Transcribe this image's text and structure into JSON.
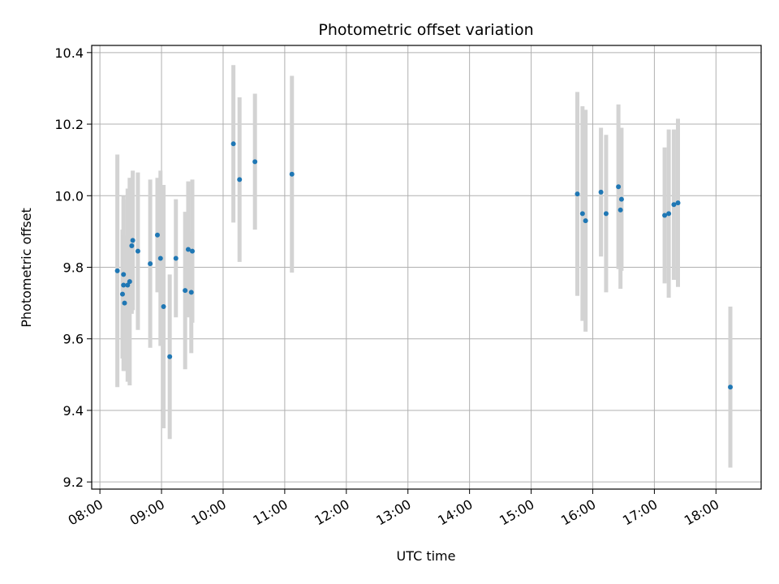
{
  "chart_data": {
    "type": "scatter",
    "title": "Photometric offset variation",
    "xlabel": "UTC time",
    "ylabel": "Photometric offset",
    "grid": true,
    "legend": "none",
    "x_ticks": [
      "08:00",
      "09:00",
      "10:00",
      "11:00",
      "12:00",
      "13:00",
      "14:00",
      "15:00",
      "16:00",
      "17:00",
      "18:00"
    ],
    "y_ticks": [
      "9.2",
      "9.4",
      "9.6",
      "9.8",
      "10.0",
      "10.2",
      "10.4"
    ],
    "xlim": [
      "07:52",
      "18:44"
    ],
    "ylim": [
      9.18,
      10.42
    ],
    "colors": {
      "marker": "#1f77b4",
      "errorbar": "#d3d3d3",
      "grid": "#b0b0b0"
    },
    "points": [
      {
        "x": "08:17",
        "y": 9.79,
        "err": 0.325
      },
      {
        "x": "08:22",
        "y": 9.725,
        "err": 0.18
      },
      {
        "x": "08:23",
        "y": 9.78,
        "err": 0.22
      },
      {
        "x": "08:23",
        "y": 9.75,
        "err": 0.24
      },
      {
        "x": "08:24",
        "y": 9.7,
        "err": 0.19
      },
      {
        "x": "08:27",
        "y": 9.75,
        "err": 0.27
      },
      {
        "x": "08:29",
        "y": 9.76,
        "err": 0.29
      },
      {
        "x": "08:31",
        "y": 9.86,
        "err": 0.19
      },
      {
        "x": "08:32",
        "y": 9.875,
        "err": 0.195
      },
      {
        "x": "08:37",
        "y": 9.845,
        "err": 0.22
      },
      {
        "x": "08:49",
        "y": 9.81,
        "err": 0.235
      },
      {
        "x": "08:56",
        "y": 9.89,
        "err": 0.16
      },
      {
        "x": "08:59",
        "y": 9.825,
        "err": 0.245
      },
      {
        "x": "09:02",
        "y": 9.69,
        "err": 0.34
      },
      {
        "x": "09:08",
        "y": 9.55,
        "err": 0.23
      },
      {
        "x": "09:14",
        "y": 9.825,
        "err": 0.165
      },
      {
        "x": "09:23",
        "y": 9.735,
        "err": 0.22
      },
      {
        "x": "09:26",
        "y": 9.85,
        "err": 0.19
      },
      {
        "x": "09:29",
        "y": 9.73,
        "err": 0.17
      },
      {
        "x": "09:30",
        "y": 9.845,
        "err": 0.2
      },
      {
        "x": "10:10",
        "y": 10.145,
        "err": 0.22
      },
      {
        "x": "10:16",
        "y": 10.045,
        "err": 0.23
      },
      {
        "x": "10:31",
        "y": 10.095,
        "err": 0.19
      },
      {
        "x": "11:07",
        "y": 10.06,
        "err": 0.275
      },
      {
        "x": "15:45",
        "y": 10.005,
        "err": 0.285
      },
      {
        "x": "15:50",
        "y": 9.95,
        "err": 0.3
      },
      {
        "x": "15:53",
        "y": 9.93,
        "err": 0.31
      },
      {
        "x": "16:08",
        "y": 10.01,
        "err": 0.18
      },
      {
        "x": "16:13",
        "y": 9.95,
        "err": 0.22
      },
      {
        "x": "16:25",
        "y": 10.025,
        "err": 0.23
      },
      {
        "x": "16:27",
        "y": 9.96,
        "err": 0.22
      },
      {
        "x": "16:28",
        "y": 9.99,
        "err": 0.2
      },
      {
        "x": "17:10",
        "y": 9.945,
        "err": 0.19
      },
      {
        "x": "17:14",
        "y": 9.95,
        "err": 0.235
      },
      {
        "x": "17:19",
        "y": 9.975,
        "err": 0.21
      },
      {
        "x": "17:23",
        "y": 9.98,
        "err": 0.235
      },
      {
        "x": "18:14",
        "y": 9.465,
        "err": 0.225
      }
    ]
  }
}
